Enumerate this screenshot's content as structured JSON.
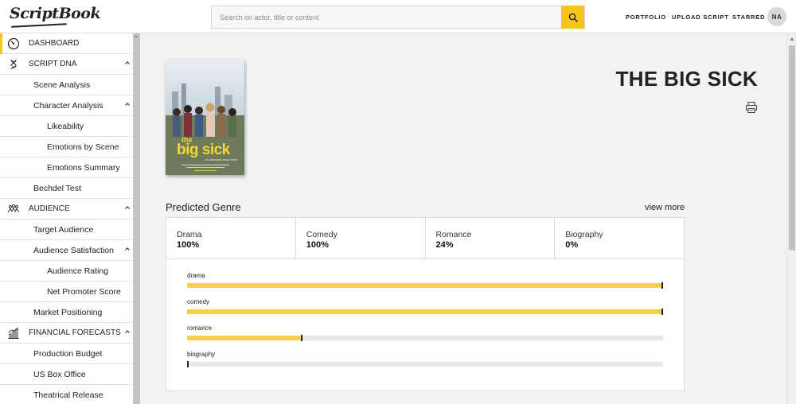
{
  "header": {
    "logo_text": "ScriptBook",
    "search_placeholder": "Search on actor, title or content",
    "search_value": "",
    "nav": [
      "PORTFOLIO",
      "UPLOAD SCRIPT",
      "STARRED"
    ],
    "avatar_initials": "NA",
    "accent_color": "#f5c518"
  },
  "sidebar": {
    "items": [
      {
        "label": "DASHBOARD",
        "icon": "dashboard-gauge-icon",
        "active": true
      },
      {
        "label": "SCRIPT DNA",
        "icon": "dna-icon",
        "expanded": true
      },
      {
        "label": "Scene Analysis"
      },
      {
        "label": "Character Analysis",
        "expanded": true
      },
      {
        "label": "Likeability"
      },
      {
        "label": "Emotions by Scene"
      },
      {
        "label": "Emotions Summary"
      },
      {
        "label": "Bechdel Test"
      },
      {
        "label": "AUDIENCE",
        "icon": "audience-icon",
        "expanded": true
      },
      {
        "label": "Target Audience"
      },
      {
        "label": "Audience Satisfaction",
        "expanded": true
      },
      {
        "label": "Audience Rating"
      },
      {
        "label": "Net Promoter Score"
      },
      {
        "label": "Market Positioning"
      },
      {
        "label": "FINANCIAL FORECASTS",
        "icon": "financial-chart-icon",
        "expanded": true
      },
      {
        "label": "Production Budget"
      },
      {
        "label": "US Box Office"
      },
      {
        "label": "Theatrical Release"
      }
    ]
  },
  "movie": {
    "title": "THE BIG SICK",
    "poster": {
      "title_line1": "the",
      "title_line2": "big sick",
      "tagline": "AN AWKWARD TRUE STORY"
    }
  },
  "predicted_genre": {
    "heading": "Predicted Genre",
    "view_more": "view more",
    "cards": [
      {
        "name": "Drama",
        "value": "100%"
      },
      {
        "name": "Comedy",
        "value": "100%"
      },
      {
        "name": "Romance",
        "value": "24%"
      },
      {
        "name": "Biography",
        "value": "0%"
      }
    ],
    "bars": [
      {
        "label": "drama",
        "fraction": 1.0
      },
      {
        "label": "comedy",
        "fraction": 1.0
      },
      {
        "label": "romance",
        "fraction": 0.24
      },
      {
        "label": "biography",
        "fraction": 0.0
      }
    ],
    "bar_color": "#f5d04a"
  }
}
